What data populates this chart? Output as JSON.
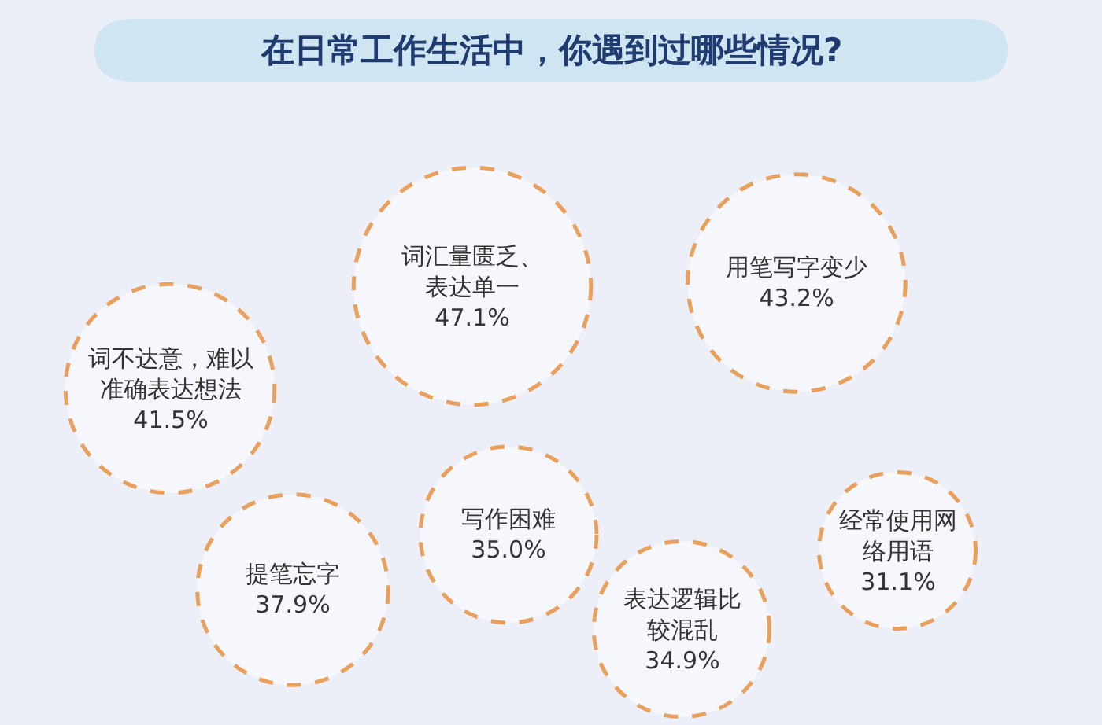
{
  "chart_data": {
    "type": "other",
    "title": "在日常工作生活中，你遇到过哪些情况?",
    "categories": [
      "词汇量匮乏、表达单一",
      "用笔写字变少",
      "词不达意，难以准确表达想法",
      "提笔忘字",
      "写作困难",
      "表达逻辑比较混乱",
      "经常使用网络用语"
    ],
    "values": [
      47.1,
      43.2,
      41.5,
      37.9,
      35.0,
      34.9,
      31.1
    ],
    "value_labels": [
      "47.1%",
      "43.2%",
      "41.5%",
      "37.9%",
      "35.0%",
      "34.9%",
      "31.1%"
    ],
    "color": "#e9a05c"
  }
}
